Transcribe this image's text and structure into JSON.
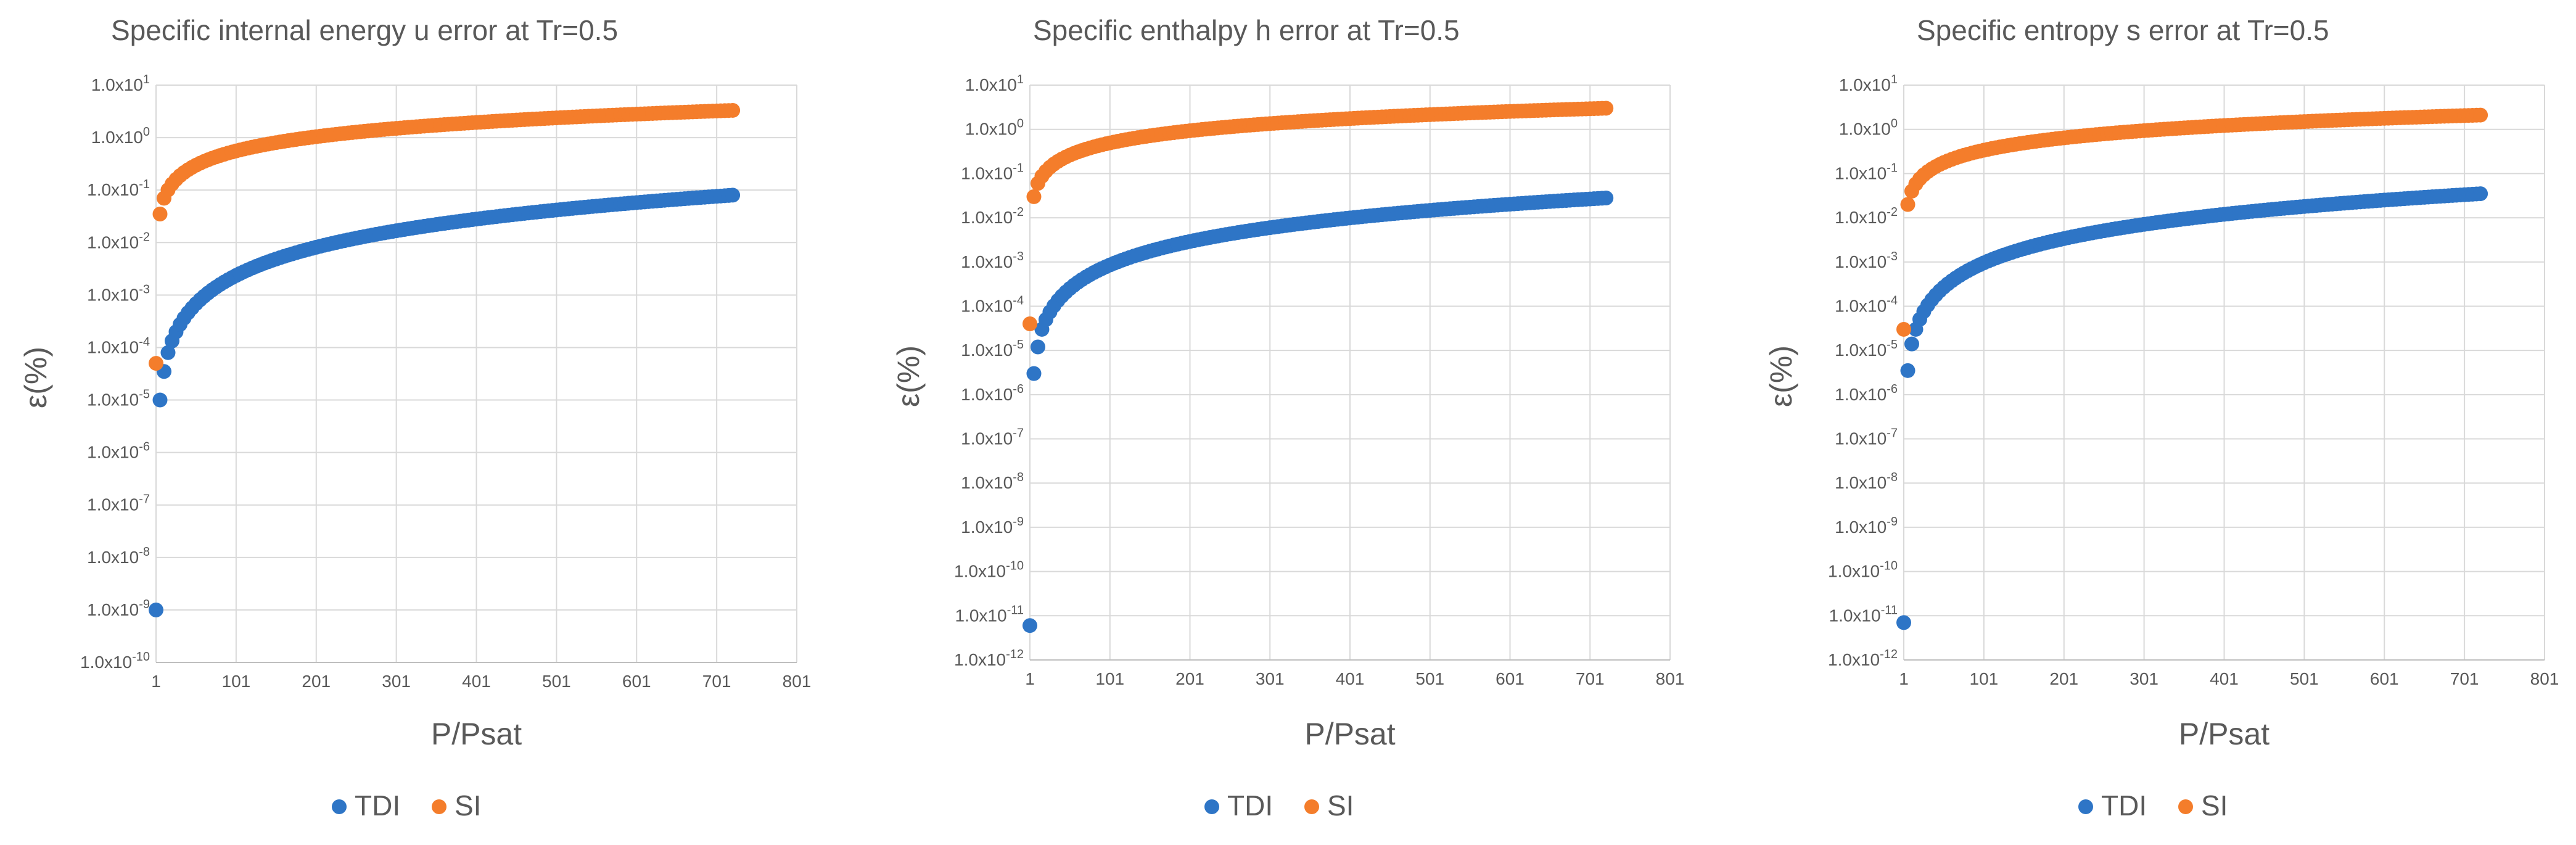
{
  "chart_data": [
    {
      "type": "scatter",
      "title": "Specific internal energy u error at Tr=0.5",
      "xlabel": "P/Psat",
      "ylabel": "ε(%)",
      "x_ticks": [
        "1",
        "101",
        "201",
        "301",
        "401",
        "501",
        "601",
        "701",
        "801"
      ],
      "xlim": [
        1,
        801
      ],
      "yscale": "log",
      "ylim_exp": [
        -10,
        1
      ],
      "legend": [
        "TDI",
        "SI"
      ],
      "legend_position": "bottom",
      "series": [
        {
          "name": "TDI",
          "color": "#2e75c6",
          "first_points": [
            [
              1,
              1e-09
            ],
            [
              6,
              1e-05
            ],
            [
              11,
              3.5e-05
            ]
          ],
          "start_x": 16,
          "start_y": 8e-05,
          "end_x": 721,
          "end_y": 0.08
        },
        {
          "name": "SI",
          "color": "#f47d2b",
          "first_points": [
            [
              1,
              5e-05
            ],
            [
              6,
              0.035
            ]
          ],
          "start_x": 11,
          "start_y": 0.07,
          "end_x": 721,
          "end_y": 3.3
        }
      ]
    },
    {
      "type": "scatter",
      "title": "Specific enthalpy h error at Tr=0.5",
      "xlabel": "P/Psat",
      "ylabel": "ε(%)",
      "x_ticks": [
        "1",
        "101",
        "201",
        "301",
        "401",
        "501",
        "601",
        "701",
        "801"
      ],
      "xlim": [
        1,
        801
      ],
      "yscale": "log",
      "ylim_exp": [
        -12,
        1
      ],
      "legend": [
        "TDI",
        "SI"
      ],
      "legend_position": "bottom",
      "series": [
        {
          "name": "TDI",
          "color": "#2e75c6",
          "first_points": [
            [
              1,
              6e-12
            ],
            [
              6,
              3e-06
            ],
            [
              11,
              1.2e-05
            ]
          ],
          "start_x": 16,
          "start_y": 3e-05,
          "end_x": 721,
          "end_y": 0.028
        },
        {
          "name": "SI",
          "color": "#f47d2b",
          "first_points": [
            [
              1,
              4e-05
            ],
            [
              6,
              0.03
            ]
          ],
          "start_x": 11,
          "start_y": 0.06,
          "end_x": 721,
          "end_y": 3.0
        }
      ]
    },
    {
      "type": "scatter",
      "title": "Specific entropy s error at Tr=0.5",
      "xlabel": "P/Psat",
      "ylabel": "ε(%)",
      "x_ticks": [
        "1",
        "101",
        "201",
        "301",
        "401",
        "501",
        "601",
        "701",
        "801"
      ],
      "xlim": [
        1,
        801
      ],
      "yscale": "log",
      "ylim_exp": [
        -12,
        1
      ],
      "legend": [
        "TDI",
        "SI"
      ],
      "legend_position": "bottom",
      "series": [
        {
          "name": "TDI",
          "color": "#2e75c6",
          "first_points": [
            [
              1,
              7e-12
            ],
            [
              6,
              3.5e-06
            ],
            [
              11,
              1.4e-05
            ]
          ],
          "start_x": 16,
          "start_y": 3e-05,
          "end_x": 721,
          "end_y": 0.035
        },
        {
          "name": "SI",
          "color": "#f47d2b",
          "first_points": [
            [
              1,
              3e-05
            ],
            [
              6,
              0.02
            ]
          ],
          "start_x": 11,
          "start_y": 0.04,
          "end_x": 721,
          "end_y": 2.1
        }
      ]
    }
  ]
}
